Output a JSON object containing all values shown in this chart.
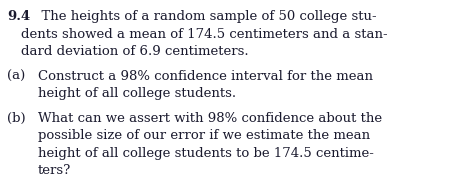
{
  "background_color": "#ffffff",
  "text_color": "#1a1a2e",
  "problem_number": "9.4",
  "intro_line1": "  The heights of a random sample of 50 college stu-",
  "intro_line2": "dents showed a mean of 174.5 centimeters and a stan-",
  "intro_line3": "dard deviation of 6.9 centimeters.",
  "part_a_label": "(a)",
  "part_a_line1": "Construct a 98% confidence interval for the mean",
  "part_a_line2": "height of all college students.",
  "part_b_label": "(b)",
  "part_b_line1": "What can we assert with 98% confidence about the",
  "part_b_line2": "possible size of our error if we estimate the mean",
  "part_b_line3": "height of all college students to be 174.5 centime-",
  "part_b_line4": "ters?",
  "figsize": [
    4.68,
    1.96
  ],
  "dpi": 100,
  "font_family": "serif",
  "font_size": 9.5
}
